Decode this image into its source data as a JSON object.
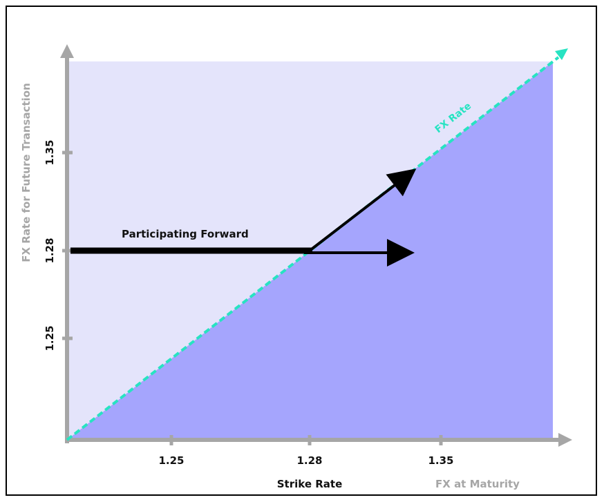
{
  "diagram": {
    "x_axis_title": "FX at Maturity",
    "y_axis_title": "FX Rate for Future Transaction",
    "strike_label": "Strike Rate",
    "x_ticks": [
      "1.25",
      "1.28",
      "1.35"
    ],
    "y_ticks": [
      "1.35",
      "1.28",
      "1.25"
    ],
    "fx_line_label": "FX Rate",
    "strategy_label": "Participating Forward"
  },
  "colors": {
    "upper_region": "#e4e4fb",
    "lower_region": "#a5a5fd",
    "fx_line": "#27e3c2",
    "axis": "#a6a6a6",
    "arrow": "#000000"
  }
}
